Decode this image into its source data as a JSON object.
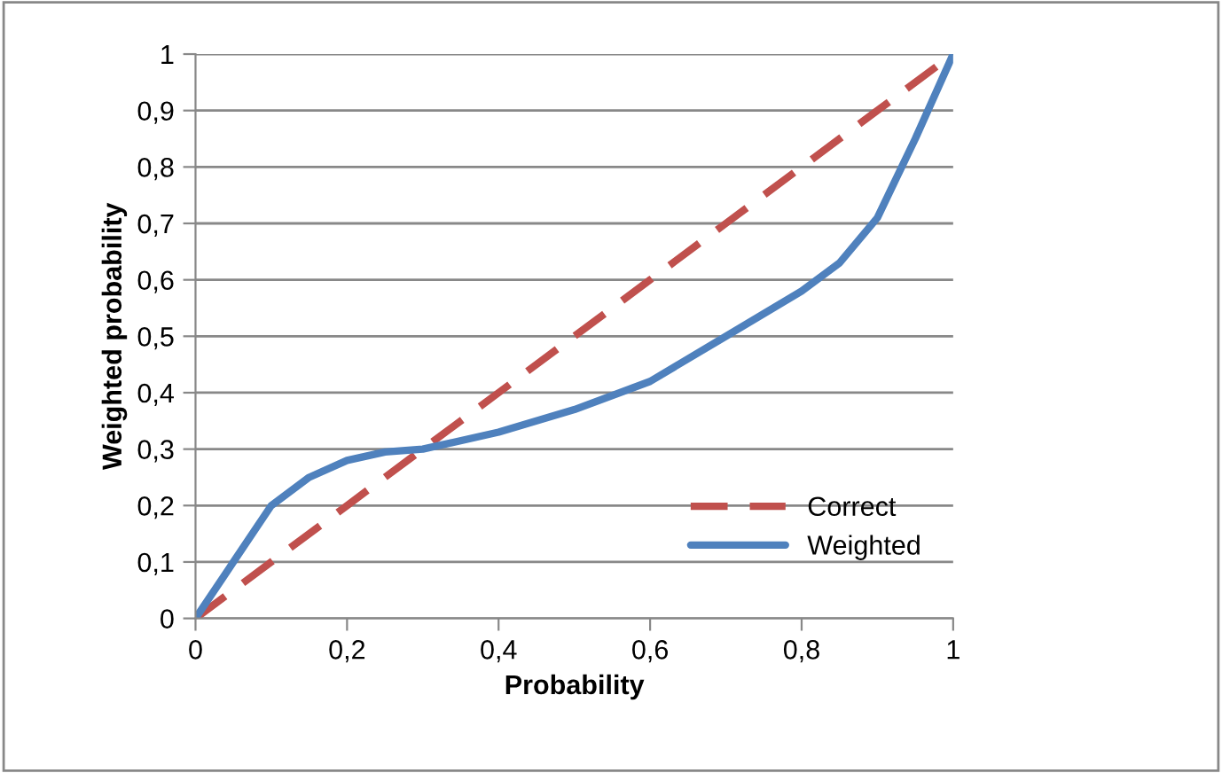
{
  "chart_data": {
    "type": "line",
    "xlabel": "Probability",
    "ylabel": "Weighted probability",
    "xlim": [
      0,
      1
    ],
    "ylim": [
      0,
      1
    ],
    "xticks": [
      0,
      {
        "value": 0.2,
        "label": "0,2"
      },
      {
        "value": 0.4,
        "label": "0,4"
      },
      {
        "value": 0.6,
        "label": "0,6"
      },
      {
        "value": 0.8,
        "label": "0,8"
      },
      1
    ],
    "yticks": [
      0,
      {
        "value": 0.1,
        "label": "0,1"
      },
      {
        "value": 0.2,
        "label": "0,2"
      },
      {
        "value": 0.3,
        "label": "0,3"
      },
      {
        "value": 0.4,
        "label": "0,4"
      },
      {
        "value": 0.5,
        "label": "0,5"
      },
      {
        "value": 0.6,
        "label": "0,6"
      },
      {
        "value": 0.7,
        "label": "0,7"
      },
      {
        "value": 0.8,
        "label": "0,8"
      },
      {
        "value": 0.9,
        "label": "0,9"
      },
      1
    ],
    "grid": "y",
    "legend": "bottom right",
    "marker": "none",
    "series": [
      {
        "name": "Correct",
        "color": "#c0504d",
        "line_style": "dashed",
        "x": [
          0,
          0.1,
          0.2,
          0.3,
          0.4,
          0.5,
          0.6,
          0.7,
          0.8,
          0.9,
          1
        ],
        "values": [
          0,
          0.1,
          0.2,
          0.3,
          0.4,
          0.5,
          0.6,
          0.7,
          0.8,
          0.9,
          1
        ]
      },
      {
        "name": "Weighted",
        "color": "#4f81bd",
        "line_style": "solid",
        "x": [
          0,
          0.05,
          0.1,
          0.15,
          0.2,
          0.25,
          0.3,
          0.4,
          0.5,
          0.6,
          0.7,
          0.8,
          0.85,
          0.9,
          0.95,
          1
        ],
        "values": [
          0,
          0.1,
          0.2,
          0.25,
          0.28,
          0.295,
          0.3,
          0.33,
          0.37,
          0.42,
          0.5,
          0.58,
          0.63,
          0.71,
          0.85,
          1
        ]
      }
    ]
  }
}
